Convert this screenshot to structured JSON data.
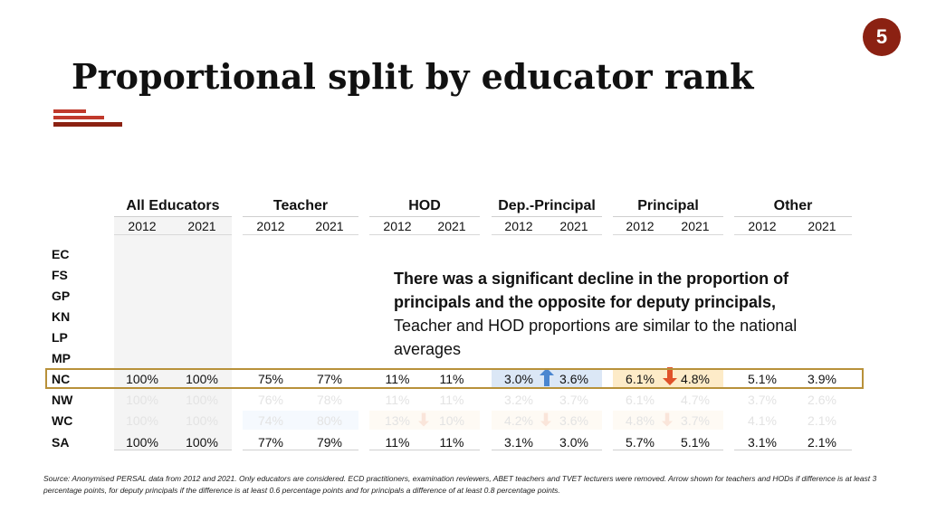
{
  "slide_number": "5",
  "title": "Proportional split by educator rank",
  "groups": [
    "All Educators",
    "Teacher",
    "HOD",
    "Dep.-Principal",
    "Principal",
    "Other"
  ],
  "years": [
    "2012",
    "2021"
  ],
  "row_labels": [
    "EC",
    "FS",
    "GP",
    "KN",
    "LP",
    "MP",
    "NC",
    "NW",
    "WC",
    "SA"
  ],
  "rows": {
    "NC": [
      "100%",
      "100%",
      "75%",
      "77%",
      "11%",
      "11%",
      "3.0%",
      "3.6%",
      "6.1%",
      "4.8%",
      "5.1%",
      "3.9%"
    ],
    "NW": [
      "100%",
      "100%",
      "76%",
      "78%",
      "11%",
      "11%",
      "3.2%",
      "3.7%",
      "6.1%",
      "4.7%",
      "3.7%",
      "2.6%"
    ],
    "WC": [
      "100%",
      "100%",
      "74%",
      "80%",
      "13%",
      "10%",
      "4.2%",
      "3.6%",
      "4.8%",
      "3.7%",
      "4.1%",
      "2.1%"
    ],
    "SA": [
      "100%",
      "100%",
      "77%",
      "79%",
      "11%",
      "11%",
      "3.1%",
      "3.0%",
      "5.7%",
      "5.1%",
      "3.1%",
      "2.1%"
    ]
  },
  "callout": {
    "bold": "There was a significant decline in the proportion of principals and the opposite for deputy principals,",
    "normal": " Teacher and HOD proportions are similar to the national averages"
  },
  "source": "Source: Anonymised PERSAL data from 2012 and 2021. Only educators are considered. ECD practitioners, examination reviewers, ABET teachers and TVET lecturers were removed. Arrow shown for teachers and HODs if difference is at least 3 percentage points, for deputy principals if the difference is at least 0.6 percentage points and for principals a difference of at least 0.8 percentage points.",
  "colors": {
    "accent": "#8b2112",
    "highlight_border": "#b8913a",
    "up_arrow": "#4a86d0",
    "down_arrow": "#e0522a",
    "blue_cell": "#dbe7f6",
    "orange_cell": "#fdebc8"
  },
  "icons": [
    "up-arrow-icon",
    "down-arrow-icon"
  ]
}
